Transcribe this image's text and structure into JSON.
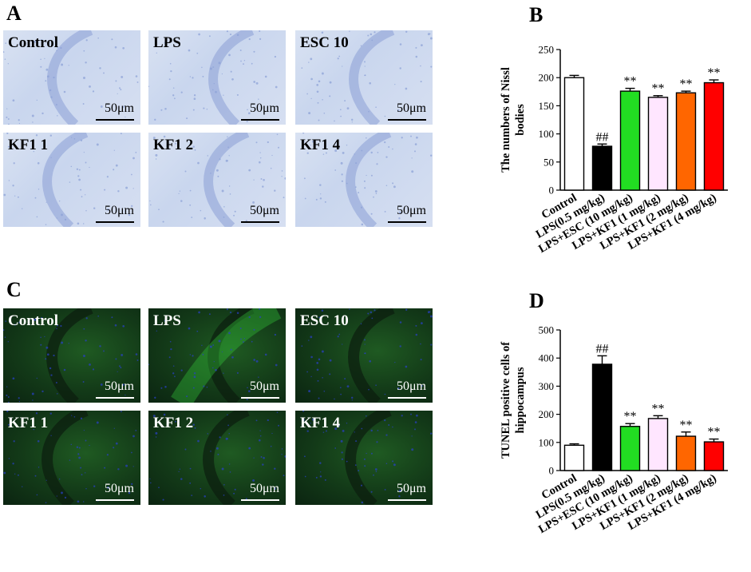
{
  "panels": {
    "a_letter": "A",
    "b_letter": "B",
    "c_letter": "C",
    "d_letter": "D"
  },
  "micrographs_a": [
    {
      "label": "Control",
      "scale": "50μm"
    },
    {
      "label": "LPS",
      "scale": "50μm"
    },
    {
      "label": "ESC 10",
      "scale": "50μm"
    },
    {
      "label": "KF1 1",
      "scale": "50μm"
    },
    {
      "label": "KF1 2",
      "scale": "50μm"
    },
    {
      "label": "KF1 4",
      "scale": "50μm"
    }
  ],
  "micrographs_c": [
    {
      "label": "Control",
      "scale": "50μm"
    },
    {
      "label": "LPS",
      "scale": "50μm"
    },
    {
      "label": "ESC 10",
      "scale": "50μm"
    },
    {
      "label": "KF1 1",
      "scale": "50μm"
    },
    {
      "label": "KF1 2",
      "scale": "50μm"
    },
    {
      "label": "KF1 4",
      "scale": "50μm"
    }
  ],
  "colors": {
    "control": "#ffffff",
    "lps": "#000000",
    "esc": "#22dd22",
    "kf1_1": "#ffe6ff",
    "kf1_2": "#ff6600",
    "kf1_4": "#ff0000",
    "nissl_stain": "#8a9fd6",
    "tunel_stain": "#36d23c",
    "dapi": "#2a40c8"
  },
  "chart_data": [
    {
      "type": "bar",
      "panel": "B",
      "categories": [
        "Control",
        "LPS(0.5 mg/kg)",
        "LPS+ESC (10 mg/kg)",
        "LPS+KF1 (1 mg/kg)",
        "LPS+KF1 (2 mg/kg)",
        "LPS+KF1 (4 mg/kg)"
      ],
      "values": [
        200,
        78,
        176,
        165,
        173,
        191
      ],
      "errors": [
        4,
        4,
        5,
        3,
        3,
        5
      ],
      "annotations": [
        "",
        "##",
        "**",
        "**",
        "**",
        "**"
      ],
      "ylabel_lines": [
        "The numbers of  Nissl",
        "bodies"
      ],
      "ylim": [
        0,
        250
      ],
      "yticks": [
        0,
        50,
        100,
        150,
        200,
        250
      ],
      "grid": false
    },
    {
      "type": "bar",
      "panel": "D",
      "categories": [
        "Control",
        "LPS(0.5 mg/kg)",
        "LPS+ESC (10 mg/kg)",
        "LPS+KF1 (1 mg/kg)",
        "LPS+KF1 (2 mg/kg)",
        "LPS+KF1 (4 mg/kg)"
      ],
      "values": [
        90,
        378,
        157,
        185,
        122,
        102
      ],
      "errors": [
        5,
        30,
        10,
        10,
        15,
        10
      ],
      "annotations": [
        "",
        "##",
        "**",
        "**",
        "**",
        "**"
      ],
      "ylabel_lines": [
        "TUNEL positive cells of",
        "hippocampus"
      ],
      "ylim": [
        0,
        500
      ],
      "yticks": [
        0,
        100,
        200,
        300,
        400,
        500
      ],
      "grid": false
    }
  ]
}
